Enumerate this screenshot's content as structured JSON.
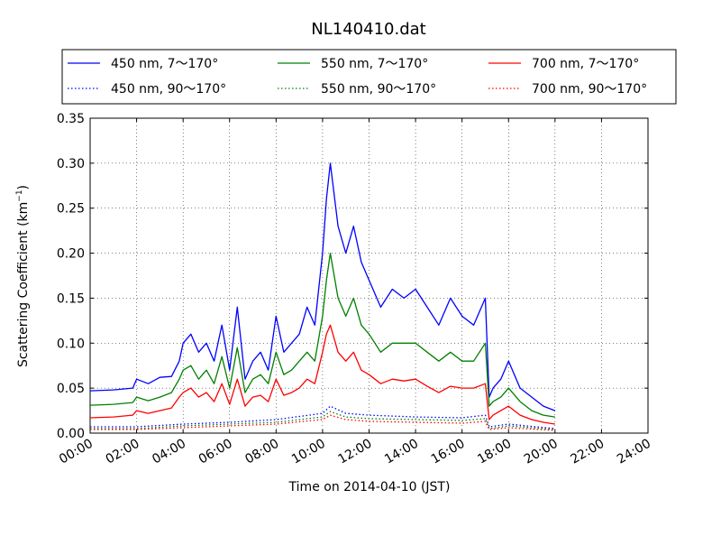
{
  "chart_data": {
    "type": "line",
    "title": "NL140410.dat",
    "xlabel": "Time on 2014-04-10 (JST)",
    "ylabel_main": "Scattering Coefficient (km",
    "ylabel_sup": "−1",
    "ylabel_end": ")",
    "xlim": [
      "00:00",
      "24:00"
    ],
    "ylim": [
      0,
      0.35
    ],
    "grid": true,
    "legend_position": "top",
    "x_ticks": [
      "00:00",
      "02:00",
      "04:00",
      "06:00",
      "08:00",
      "10:00",
      "12:00",
      "14:00",
      "16:00",
      "18:00",
      "20:00",
      "22:00",
      "24:00"
    ],
    "y_ticks": [
      "0.00",
      "0.05",
      "0.10",
      "0.15",
      "0.20",
      "0.25",
      "0.30",
      "0.35"
    ],
    "series": [
      {
        "name": "450 nm, 7～170°",
        "color": "#0000ff",
        "style": "solid",
        "x": [
          "00:00",
          "01:00",
          "01:50",
          "02:00",
          "02:30",
          "03:00",
          "03:30",
          "03:50",
          "04:00",
          "04:20",
          "04:40",
          "05:00",
          "05:20",
          "05:40",
          "06:00",
          "06:20",
          "06:40",
          "07:00",
          "07:20",
          "07:40",
          "08:00",
          "08:20",
          "08:40",
          "09:00",
          "09:20",
          "09:40",
          "10:00",
          "10:10",
          "10:20",
          "10:40",
          "11:00",
          "11:20",
          "11:40",
          "12:00",
          "12:30",
          "13:00",
          "13:30",
          "14:00",
          "14:30",
          "15:00",
          "15:30",
          "16:00",
          "16:30",
          "17:00",
          "17:10",
          "17:20",
          "17:40",
          "18:00",
          "18:30",
          "19:00",
          "19:30",
          "20:00"
        ],
        "y": [
          0.047,
          0.048,
          0.05,
          0.06,
          0.055,
          0.062,
          0.063,
          0.08,
          0.1,
          0.11,
          0.09,
          0.1,
          0.08,
          0.12,
          0.07,
          0.14,
          0.06,
          0.08,
          0.09,
          0.07,
          0.13,
          0.09,
          0.1,
          0.11,
          0.14,
          0.12,
          0.2,
          0.26,
          0.3,
          0.23,
          0.2,
          0.23,
          0.19,
          0.17,
          0.14,
          0.16,
          0.15,
          0.16,
          0.14,
          0.12,
          0.15,
          0.13,
          0.12,
          0.15,
          0.04,
          0.05,
          0.06,
          0.08,
          0.05,
          0.04,
          0.03,
          0.025
        ]
      },
      {
        "name": "550 nm, 7～170°",
        "color": "#008000",
        "style": "solid",
        "x": [
          "00:00",
          "01:00",
          "01:50",
          "02:00",
          "02:30",
          "03:00",
          "03:30",
          "03:50",
          "04:00",
          "04:20",
          "04:40",
          "05:00",
          "05:20",
          "05:40",
          "06:00",
          "06:20",
          "06:40",
          "07:00",
          "07:20",
          "07:40",
          "08:00",
          "08:20",
          "08:40",
          "09:00",
          "09:20",
          "09:40",
          "10:00",
          "10:10",
          "10:20",
          "10:40",
          "11:00",
          "11:20",
          "11:40",
          "12:00",
          "12:30",
          "13:00",
          "13:30",
          "14:00",
          "14:30",
          "15:00",
          "15:30",
          "16:00",
          "16:30",
          "17:00",
          "17:10",
          "17:20",
          "17:40",
          "18:00",
          "18:30",
          "19:00",
          "19:30",
          "20:00"
        ],
        "y": [
          0.031,
          0.032,
          0.034,
          0.04,
          0.036,
          0.04,
          0.045,
          0.06,
          0.07,
          0.075,
          0.06,
          0.07,
          0.055,
          0.085,
          0.05,
          0.095,
          0.045,
          0.06,
          0.065,
          0.055,
          0.09,
          0.065,
          0.07,
          0.08,
          0.09,
          0.08,
          0.13,
          0.17,
          0.2,
          0.15,
          0.13,
          0.15,
          0.12,
          0.11,
          0.09,
          0.1,
          0.1,
          0.1,
          0.09,
          0.08,
          0.09,
          0.08,
          0.08,
          0.1,
          0.03,
          0.035,
          0.04,
          0.05,
          0.035,
          0.025,
          0.02,
          0.018
        ]
      },
      {
        "name": "700 nm, 7～170°",
        "color": "#ff0000",
        "style": "solid",
        "x": [
          "00:00",
          "01:00",
          "01:50",
          "02:00",
          "02:30",
          "03:00",
          "03:30",
          "03:50",
          "04:00",
          "04:20",
          "04:40",
          "05:00",
          "05:20",
          "05:40",
          "06:00",
          "06:20",
          "06:40",
          "07:00",
          "07:20",
          "07:40",
          "08:00",
          "08:20",
          "08:40",
          "09:00",
          "09:20",
          "09:40",
          "10:00",
          "10:10",
          "10:20",
          "10:40",
          "11:00",
          "11:20",
          "11:40",
          "12:00",
          "12:30",
          "13:00",
          "13:30",
          "14:00",
          "14:30",
          "15:00",
          "15:30",
          "16:00",
          "16:30",
          "17:00",
          "17:10",
          "17:20",
          "17:40",
          "18:00",
          "18:30",
          "19:00",
          "19:30",
          "20:00"
        ],
        "y": [
          0.017,
          0.018,
          0.02,
          0.025,
          0.022,
          0.025,
          0.028,
          0.04,
          0.045,
          0.05,
          0.04,
          0.045,
          0.035,
          0.055,
          0.032,
          0.06,
          0.03,
          0.04,
          0.042,
          0.035,
          0.06,
          0.042,
          0.045,
          0.05,
          0.06,
          0.055,
          0.09,
          0.11,
          0.12,
          0.09,
          0.08,
          0.09,
          0.07,
          0.065,
          0.055,
          0.06,
          0.058,
          0.06,
          0.052,
          0.045,
          0.052,
          0.05,
          0.05,
          0.055,
          0.015,
          0.02,
          0.025,
          0.03,
          0.02,
          0.015,
          0.012,
          0.01
        ]
      },
      {
        "name": "450 nm, 90～170°",
        "color": "#0000ff",
        "style": "dotted",
        "x": [
          "00:00",
          "02:00",
          "04:00",
          "06:00",
          "08:00",
          "10:00",
          "10:20",
          "11:00",
          "12:00",
          "14:00",
          "16:00",
          "17:00",
          "17:10",
          "18:00",
          "20:00"
        ],
        "y": [
          0.007,
          0.007,
          0.01,
          0.012,
          0.015,
          0.022,
          0.03,
          0.022,
          0.02,
          0.018,
          0.017,
          0.02,
          0.007,
          0.01,
          0.005
        ]
      },
      {
        "name": "550 nm, 90～170°",
        "color": "#008000",
        "style": "dotted",
        "x": [
          "00:00",
          "02:00",
          "04:00",
          "06:00",
          "08:00",
          "10:00",
          "10:20",
          "11:00",
          "12:00",
          "14:00",
          "16:00",
          "17:00",
          "17:10",
          "18:00",
          "20:00"
        ],
        "y": [
          0.005,
          0.005,
          0.008,
          0.01,
          0.012,
          0.018,
          0.024,
          0.018,
          0.016,
          0.015,
          0.014,
          0.016,
          0.005,
          0.008,
          0.004
        ]
      },
      {
        "name": "700 nm, 90～170°",
        "color": "#ff0000",
        "style": "dotted",
        "x": [
          "00:00",
          "02:00",
          "04:00",
          "06:00",
          "08:00",
          "10:00",
          "10:20",
          "11:00",
          "12:00",
          "14:00",
          "16:00",
          "17:00",
          "17:10",
          "18:00",
          "20:00"
        ],
        "y": [
          0.004,
          0.004,
          0.006,
          0.008,
          0.01,
          0.015,
          0.02,
          0.015,
          0.013,
          0.012,
          0.011,
          0.013,
          0.004,
          0.006,
          0.003
        ]
      }
    ]
  }
}
